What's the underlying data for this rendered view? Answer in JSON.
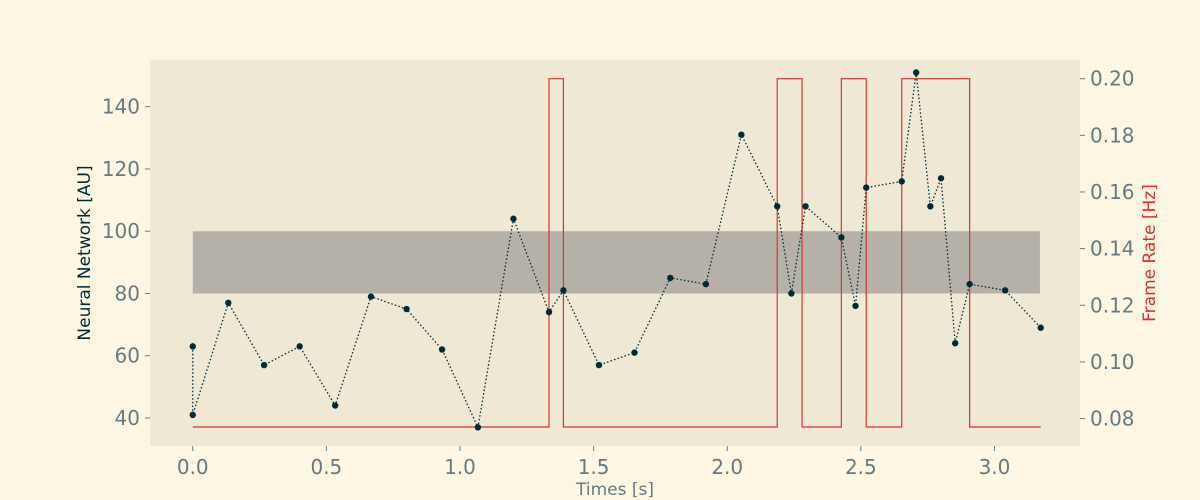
{
  "chart_data": {
    "type": "line",
    "title": "",
    "xlabel": "Times [s]",
    "ylabel_left": "Neural Network [AU]",
    "ylabel_right": "Frame Rate [Hz]",
    "xlim": [
      -0.16,
      3.32
    ],
    "ylim_left": [
      31,
      155
    ],
    "ylim_right": [
      0.0703,
      0.2066
    ],
    "x_ticks": [
      0.0,
      0.5,
      1.0,
      1.5,
      2.0,
      2.5,
      3.0
    ],
    "x_tick_labels": [
      "0.0",
      "0.5",
      "1.0",
      "1.5",
      "2.0",
      "2.5",
      "3.0"
    ],
    "y_left_ticks": [
      40,
      60,
      80,
      100,
      120,
      140
    ],
    "y_left_tick_labels": [
      "40",
      "60",
      "80",
      "100",
      "120",
      "140"
    ],
    "y_right_ticks": [
      0.08,
      0.1,
      0.12,
      0.14,
      0.16,
      0.18,
      0.2
    ],
    "y_right_tick_labels": [
      "0.08",
      "0.10",
      "0.12",
      "0.14",
      "0.16",
      "0.18",
      "0.20"
    ],
    "grid": false,
    "band": {
      "x_range": [
        0.0,
        3.17
      ],
      "y_range": [
        80,
        100
      ],
      "color": "#b5b1a8"
    },
    "series": [
      {
        "axis": "left",
        "style": "dotted line with markers",
        "color": "#002b36",
        "x": [
          0.0,
          0.0,
          0.133,
          0.267,
          0.4,
          0.533,
          0.667,
          0.8,
          0.933,
          1.067,
          1.2,
          1.333,
          1.387,
          1.52,
          1.653,
          1.787,
          1.92,
          2.053,
          2.187,
          2.24,
          2.293,
          2.427,
          2.48,
          2.52,
          2.653,
          2.707,
          2.76,
          2.8,
          2.853,
          2.907,
          3.04,
          3.173
        ],
        "y": [
          63,
          41,
          77,
          57,
          63,
          44,
          79,
          75,
          62,
          37,
          104,
          74,
          81,
          57,
          61,
          85,
          83,
          131,
          108,
          80,
          108,
          98,
          76,
          114,
          116,
          151,
          108,
          117,
          64,
          83,
          81,
          69
        ]
      },
      {
        "axis": "right",
        "style": "step",
        "color": "#dc322f",
        "x": [
          0.0,
          1.333,
          1.333,
          1.387,
          1.387,
          2.187,
          2.187,
          2.28,
          2.28,
          2.427,
          2.427,
          2.52,
          2.52,
          2.653,
          2.653,
          2.907,
          2.907,
          3.173
        ],
        "y": [
          0.077,
          0.077,
          0.2,
          0.2,
          0.077,
          0.077,
          0.2,
          0.2,
          0.077,
          0.077,
          0.2,
          0.2,
          0.077,
          0.077,
          0.2,
          0.2,
          0.077,
          0.077
        ]
      }
    ]
  },
  "colors": {
    "figure_bg": "#fdf6e3",
    "axes_bg": "#eee8d5",
    "tick_text": "#657b83",
    "left_label": "#002b36",
    "right_label": "#dc322f"
  }
}
